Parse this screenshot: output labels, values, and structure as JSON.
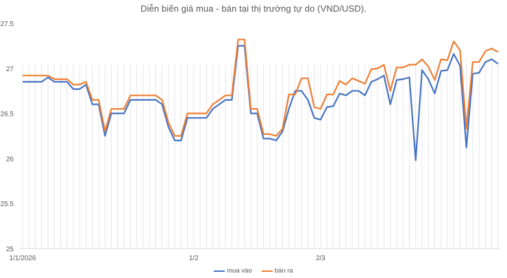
{
  "chart_data": {
    "type": "line",
    "title": "Diễn biến giá mua - bán tại thị trường tự do (VND/USD).",
    "xlabel": "",
    "ylabel": "",
    "ylim": [
      25,
      27.5
    ],
    "yticks": [
      "27.5",
      "27",
      "26.5",
      "26",
      "25.5",
      "25"
    ],
    "xtick_labels": [
      {
        "label": "1/1/2026",
        "index": 0
      },
      {
        "label": "1/2",
        "index": 27
      },
      {
        "label": "2/3",
        "index": 47
      }
    ],
    "grid": {
      "vertical": true,
      "horizontal": false
    },
    "legend_position": "bottom",
    "series": [
      {
        "name": "mua vào",
        "color": "#4472C4",
        "values": [
          26.85,
          26.85,
          26.85,
          26.85,
          26.9,
          26.85,
          26.85,
          26.85,
          26.77,
          26.77,
          26.82,
          26.6,
          26.6,
          26.25,
          26.5,
          26.5,
          26.5,
          26.65,
          26.65,
          26.65,
          26.65,
          26.65,
          26.6,
          26.35,
          26.2,
          26.2,
          26.45,
          26.45,
          26.45,
          26.45,
          26.55,
          26.6,
          26.65,
          26.65,
          27.25,
          27.25,
          26.5,
          26.5,
          26.22,
          26.22,
          26.2,
          26.3,
          26.55,
          26.75,
          26.75,
          26.65,
          26.45,
          26.43,
          26.57,
          26.58,
          26.72,
          26.7,
          26.75,
          26.75,
          26.7,
          26.85,
          26.88,
          26.92,
          26.6,
          26.87,
          26.88,
          26.9,
          25.98,
          26.98,
          26.88,
          26.72,
          26.97,
          26.98,
          27.16,
          27.03,
          26.12,
          26.94,
          26.95,
          27.07,
          27.1,
          27.05
        ],
        "x_index": []
      },
      {
        "name": "bán ra",
        "color": "#ED7D31",
        "values": [
          26.92,
          26.92,
          26.92,
          26.92,
          26.92,
          26.88,
          26.88,
          26.88,
          26.82,
          26.82,
          26.85,
          26.65,
          26.65,
          26.3,
          26.55,
          26.55,
          26.55,
          26.7,
          26.7,
          26.7,
          26.7,
          26.7,
          26.65,
          26.4,
          26.25,
          26.25,
          26.5,
          26.5,
          26.5,
          26.5,
          26.6,
          26.65,
          26.7,
          26.7,
          27.32,
          27.32,
          26.55,
          26.55,
          26.27,
          26.27,
          26.25,
          26.33,
          26.71,
          26.71,
          26.89,
          26.89,
          26.57,
          26.55,
          26.71,
          26.71,
          26.86,
          26.82,
          26.89,
          26.86,
          26.83,
          26.99,
          27.0,
          27.04,
          26.75,
          27.01,
          27.01,
          27.04,
          27.04,
          27.1,
          27.02,
          26.87,
          27.1,
          27.09,
          27.3,
          27.2,
          26.33,
          27.07,
          27.07,
          27.19,
          27.22,
          27.18
        ],
        "x_index": []
      }
    ]
  },
  "legend": {
    "items": [
      {
        "label": "mua vào",
        "color": "#4472C4"
      },
      {
        "label": "bán ra",
        "color": "#ED7D31"
      }
    ]
  }
}
